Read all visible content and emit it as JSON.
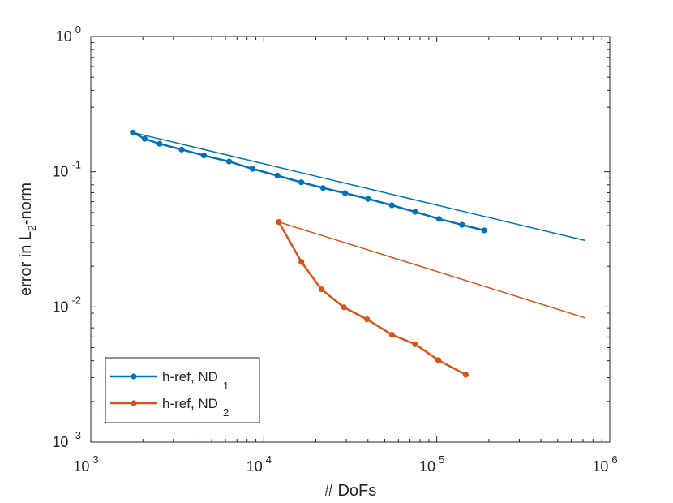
{
  "chart_data": {
    "type": "line",
    "xscale": "log",
    "yscale": "log",
    "xlim": [
      1000,
      1000000
    ],
    "ylim": [
      0.001,
      1
    ],
    "xlabel": "# DoFs",
    "ylabel": {
      "prefix": "error in L",
      "sub": "2",
      "suffix": "-norm"
    },
    "x_ticks": [
      {
        "base": "10",
        "exp": "3",
        "value": 1000
      },
      {
        "base": "10",
        "exp": "4",
        "value": 10000
      },
      {
        "base": "10",
        "exp": "5",
        "value": 100000
      },
      {
        "base": "10",
        "exp": "6",
        "value": 1000000
      }
    ],
    "y_ticks": [
      {
        "base": "10",
        "exp": "-3",
        "value": 0.001
      },
      {
        "base": "10",
        "exp": "-2",
        "value": 0.01
      },
      {
        "base": "10",
        "exp": "-1",
        "value": 0.1
      },
      {
        "base": "10",
        "exp": "0",
        "value": 1
      }
    ],
    "series": [
      {
        "name": "h-ref, ND",
        "sub": "1",
        "color": "#0072BD",
        "x": [
          1750,
          2050,
          2500,
          3350,
          4500,
          6300,
          8600,
          12000,
          16500,
          22000,
          29500,
          40000,
          55000,
          75000,
          103000,
          140000,
          188000
        ],
        "y": [
          0.195,
          0.175,
          0.161,
          0.146,
          0.132,
          0.119,
          0.105,
          0.0935,
          0.0835,
          0.0758,
          0.0695,
          0.063,
          0.0565,
          0.0505,
          0.0448,
          0.0405,
          0.0368
        ]
      },
      {
        "name": "h-ref, ND",
        "sub": "2",
        "color": "#D95319",
        "x": [
          12200,
          16500,
          21500,
          29000,
          39500,
          55000,
          75000,
          102000,
          147000
        ],
        "y": [
          0.0425,
          0.0215,
          0.0135,
          0.00995,
          0.0081,
          0.00623,
          0.0053,
          0.00405,
          0.00315
        ]
      }
    ],
    "reference_lines": [
      {
        "color": "#0072BD",
        "x": [
          1750,
          720000
        ],
        "y": [
          0.195,
          0.031
        ]
      },
      {
        "color": "#D95319",
        "x": [
          12200,
          720000
        ],
        "y": [
          0.0425,
          0.0083
        ]
      }
    ],
    "legend_position": "bottom-left"
  }
}
